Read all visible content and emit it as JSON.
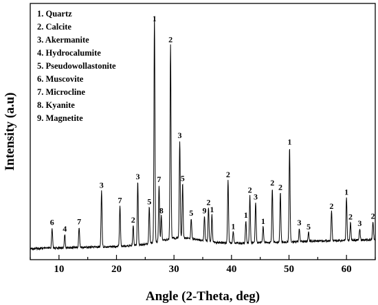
{
  "chart_data": {
    "type": "line",
    "xlabel": "Angle (2-Theta, deg)",
    "ylabel": "Intensity (a.u)",
    "xlim": [
      5,
      65
    ],
    "x_ticks": [
      10,
      20,
      30,
      40,
      50,
      60
    ],
    "y_relative": true,
    "legend_placement": "top-left",
    "legend": [
      "1. Quartz",
      "2. Calcite",
      "3. Akermanite",
      "4. Hydrocalumite",
      "5. Pseudowollastonite",
      "6. Muscovite",
      "7. Microcline",
      "8. Kyanite",
      "9. Magnetite"
    ],
    "peaks": [
      {
        "x": 8.8,
        "y": 9,
        "label": "6"
      },
      {
        "x": 11.0,
        "y": 6,
        "label": "4"
      },
      {
        "x": 13.5,
        "y": 9,
        "label": "7"
      },
      {
        "x": 17.4,
        "y": 25,
        "label": "3"
      },
      {
        "x": 20.6,
        "y": 18,
        "label": "7"
      },
      {
        "x": 22.9,
        "y": 9,
        "label": "2"
      },
      {
        "x": 23.7,
        "y": 28,
        "label": "3"
      },
      {
        "x": 25.7,
        "y": 16,
        "label": "5"
      },
      {
        "x": 26.6,
        "y": 100,
        "label": "1"
      },
      {
        "x": 27.4,
        "y": 25,
        "label": "7"
      },
      {
        "x": 27.8,
        "y": 11,
        "label": "8"
      },
      {
        "x": 29.4,
        "y": 86,
        "label": "2"
      },
      {
        "x": 31.0,
        "y": 43,
        "label": "3"
      },
      {
        "x": 31.5,
        "y": 24,
        "label": "5"
      },
      {
        "x": 33.0,
        "y": 9,
        "label": "5"
      },
      {
        "x": 35.3,
        "y": 11,
        "label": "9"
      },
      {
        "x": 36.0,
        "y": 15,
        "label": "2"
      },
      {
        "x": 36.6,
        "y": 12,
        "label": "1"
      },
      {
        "x": 39.4,
        "y": 28,
        "label": "2"
      },
      {
        "x": 40.3,
        "y": 5,
        "label": "1"
      },
      {
        "x": 42.5,
        "y": 10,
        "label": "1"
      },
      {
        "x": 43.2,
        "y": 21,
        "label": "2"
      },
      {
        "x": 44.2,
        "y": 18,
        "label": "3"
      },
      {
        "x": 45.5,
        "y": 7,
        "label": "1"
      },
      {
        "x": 47.1,
        "y": 24,
        "label": "2"
      },
      {
        "x": 48.5,
        "y": 22,
        "label": "2"
      },
      {
        "x": 50.1,
        "y": 42,
        "label": "1"
      },
      {
        "x": 51.8,
        "y": 6,
        "label": "3"
      },
      {
        "x": 53.4,
        "y": 4,
        "label": "5"
      },
      {
        "x": 57.4,
        "y": 13,
        "label": "2"
      },
      {
        "x": 60.0,
        "y": 19,
        "label": "1"
      },
      {
        "x": 60.7,
        "y": 8,
        "label": "2"
      },
      {
        "x": 62.3,
        "y": 5,
        "label": "3"
      },
      {
        "x": 64.6,
        "y": 8,
        "label": "2"
      }
    ]
  }
}
